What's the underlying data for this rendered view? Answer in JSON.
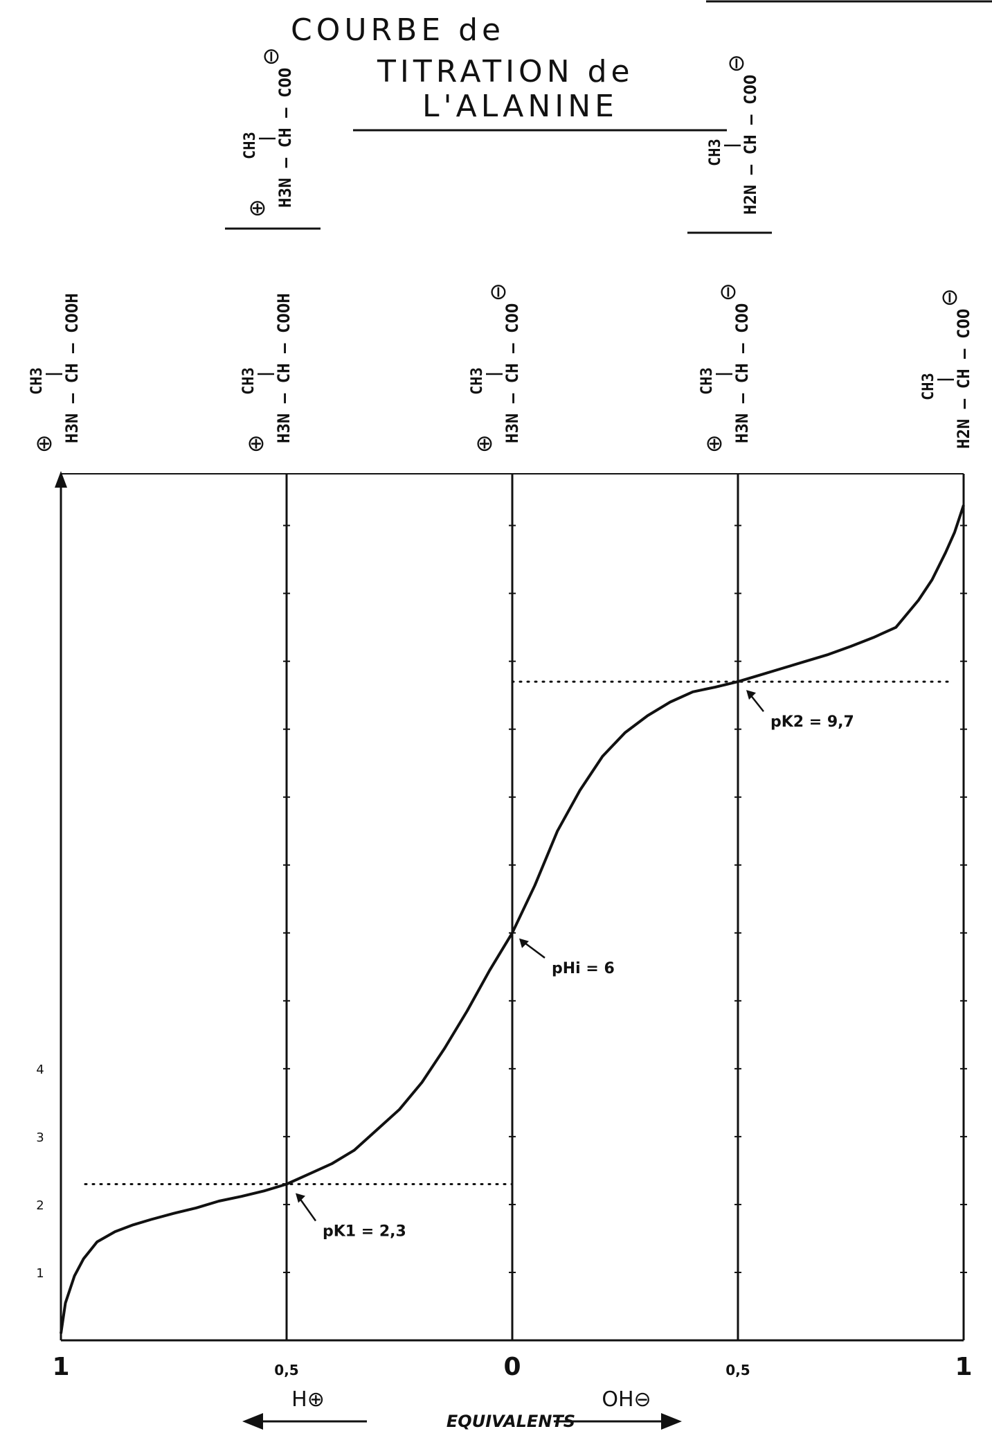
{
  "title_lines": [
    "COURBE de",
    "TITRATION de",
    "L'ALANINE"
  ],
  "structures": {
    "top": [
      {
        "formula": "H3N — CH — COO",
        "substituent": "CH3",
        "charges": [
          "⊕",
          "⊖"
        ]
      },
      {
        "formula": "H2N — CH — COO",
        "substituent": "CH3",
        "charges": [
          "⊖"
        ]
      }
    ],
    "row": [
      {
        "formula": "H3N — CH — COOH",
        "substituent": "CH3",
        "charges": [
          "⊕"
        ]
      },
      {
        "formula": "H3N — CH — COOH",
        "substituent": "CH3",
        "charges": [
          "⊕"
        ]
      },
      {
        "formula": "H3N — CH — COO",
        "substituent": "CH3",
        "charges": [
          "⊕",
          "⊖"
        ]
      },
      {
        "formula": "H3N — CH — COO",
        "substituent": "CH3",
        "charges": [
          "⊕",
          "⊖"
        ]
      },
      {
        "formula": "H2N — CH — COO",
        "substituent": "CH3",
        "charges": [
          "⊖"
        ]
      }
    ]
  },
  "chart_data": {
    "type": "line",
    "title": "COURBE de TITRATION de L'ALANINE",
    "xlabel": "EQUIVALENTS",
    "x_direction_labels": {
      "left": "H⊕",
      "right": "OH⊖"
    },
    "x_tick_labels": [
      "1",
      "0,5",
      "0",
      "0,5",
      "1"
    ],
    "x_ticks": [
      -1,
      -0.5,
      0,
      0.5,
      1
    ],
    "xlim": [
      -1,
      1
    ],
    "y_tick_labels": [
      "1",
      "2",
      "3",
      "4"
    ],
    "y_ticks": [
      1,
      2,
      3,
      4
    ],
    "ylim": [
      0,
      12.7
    ],
    "grid": "vertical lines at each x tick",
    "series": [
      {
        "x": [
          -1,
          -0.99,
          -0.97,
          -0.95,
          -0.92,
          -0.88,
          -0.84,
          -0.8,
          -0.75,
          -0.7,
          -0.65,
          -0.6,
          -0.55,
          -0.5,
          -0.45,
          -0.4,
          -0.35,
          -0.3,
          -0.25,
          -0.2,
          -0.15,
          -0.1,
          -0.05,
          0,
          0.05,
          0.1,
          0.15,
          0.2,
          0.25,
          0.3,
          0.35,
          0.4,
          0.45,
          0.5,
          0.55,
          0.6,
          0.65,
          0.7,
          0.75,
          0.8,
          0.85,
          0.9,
          0.93,
          0.96,
          0.98,
          1
        ],
        "y": [
          0.1,
          0.55,
          0.95,
          1.2,
          1.45,
          1.6,
          1.7,
          1.78,
          1.87,
          1.95,
          2.05,
          2.12,
          2.2,
          2.3,
          2.45,
          2.6,
          2.8,
          3.1,
          3.4,
          3.8,
          4.3,
          4.85,
          5.45,
          6.0,
          6.7,
          7.5,
          8.1,
          8.6,
          8.95,
          9.2,
          9.4,
          9.55,
          9.62,
          9.7,
          9.8,
          9.9,
          10.0,
          10.1,
          10.22,
          10.35,
          10.5,
          10.9,
          11.2,
          11.6,
          11.9,
          12.3
        ]
      }
    ],
    "reference_lines": [
      {
        "y": 2.3,
        "x_range": [
          -1,
          0
        ],
        "style": "dotted"
      },
      {
        "y": 9.7,
        "x_range": [
          0,
          1
        ],
        "style": "dotted"
      }
    ],
    "annotations": [
      {
        "text": "pK1 = 2,3",
        "x": -0.5,
        "y": 2.3
      },
      {
        "text": "pHi = 6",
        "x": 0,
        "y": 6.0
      },
      {
        "text": "pK2 = 9,7",
        "x": 0.5,
        "y": 9.7
      }
    ]
  }
}
